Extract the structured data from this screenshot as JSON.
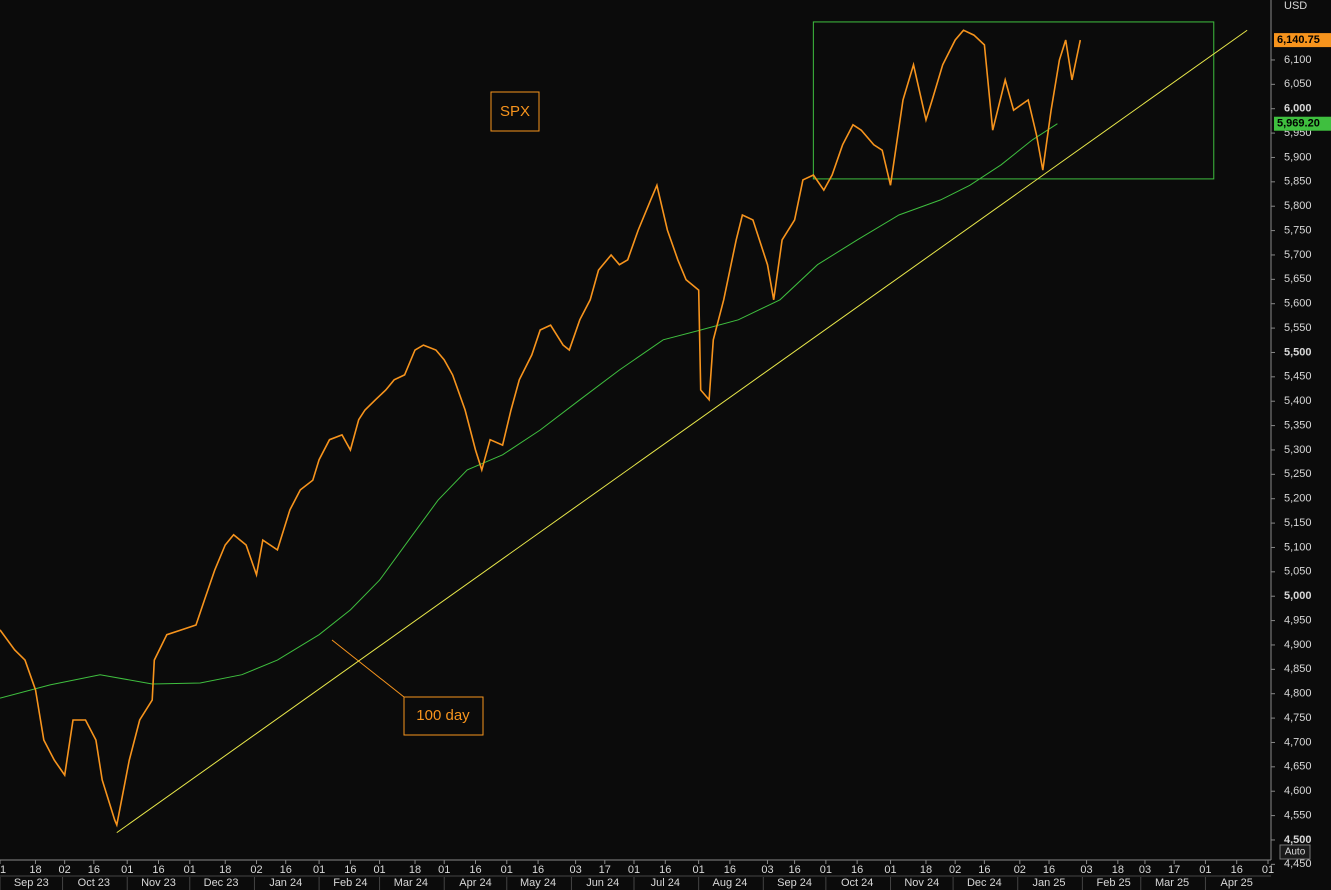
{
  "chart_data": {
    "type": "line",
    "currency_label": "USD",
    "annotations": [
      {
        "text": "SPX",
        "color": "#f7941d"
      },
      {
        "text": "100 day",
        "color": "#f7941d"
      }
    ],
    "auto_button": "Auto",
    "xlim": [
      "2023-09-01",
      "2025-05-01"
    ],
    "ylim": [
      4463,
      6223
    ],
    "series": [
      {
        "color": "#f7941d",
        "last_value_label": "6,140.75",
        "x": [
          "2023-09-01",
          "2023-09-08",
          "2023-09-13",
          "2023-09-18",
          "2023-09-22",
          "2023-09-27",
          "2023-10-02",
          "2023-10-06",
          "2023-10-12",
          "2023-10-17",
          "2023-10-20",
          "2023-10-26",
          "2023-10-27",
          "2023-11-02",
          "2023-11-07",
          "2023-11-13",
          "2023-11-14",
          "2023-11-20",
          "2023-11-27",
          "2023-12-04",
          "2023-12-08",
          "2023-12-13",
          "2023-12-18",
          "2023-12-22",
          "2023-12-28",
          "2024-01-02",
          "2024-01-05",
          "2024-01-12",
          "2024-01-18",
          "2024-01-23",
          "2024-01-29",
          "2024-02-01",
          "2024-02-06",
          "2024-02-12",
          "2024-02-16",
          "2024-02-20",
          "2024-02-23",
          "2024-02-28",
          "2024-03-04",
          "2024-03-08",
          "2024-03-13",
          "2024-03-18",
          "2024-03-22",
          "2024-03-28",
          "2024-04-01",
          "2024-04-05",
          "2024-04-11",
          "2024-04-16",
          "2024-04-19",
          "2024-04-23",
          "2024-04-29",
          "2024-05-03",
          "2024-05-07",
          "2024-05-13",
          "2024-05-17",
          "2024-05-22",
          "2024-05-28",
          "2024-05-31",
          "2024-06-05",
          "2024-06-10",
          "2024-06-14",
          "2024-06-20",
          "2024-06-24",
          "2024-06-28",
          "2024-07-03",
          "2024-07-09",
          "2024-07-12",
          "2024-07-17",
          "2024-07-22",
          "2024-07-26",
          "2024-08-01",
          "2024-08-02",
          "2024-08-06",
          "2024-08-08",
          "2024-08-13",
          "2024-08-19",
          "2024-08-22",
          "2024-08-27",
          "2024-09-03",
          "2024-09-06",
          "2024-09-10",
          "2024-09-16",
          "2024-09-20",
          "2024-09-25",
          "2024-09-30",
          "2024-10-04",
          "2024-10-09",
          "2024-10-14",
          "2024-10-18",
          "2024-10-24",
          "2024-10-28",
          "2024-11-01",
          "2024-11-07",
          "2024-11-12",
          "2024-11-18",
          "2024-11-21",
          "2024-11-26",
          "2024-12-02",
          "2024-12-06",
          "2024-12-11",
          "2024-12-16",
          "2024-12-20",
          "2024-12-26",
          "2024-12-30",
          "2025-01-06",
          "2025-01-10",
          "2025-01-13",
          "2025-01-17",
          "2025-01-21",
          "2025-01-24",
          "2025-01-27",
          "2025-01-31"
        ],
        "values": [
          4931,
          4890,
          4869,
          4808,
          4705,
          4664,
          4633,
          4746,
          4746,
          4705,
          4623,
          4541,
          4531,
          4664,
          4746,
          4787,
          4869,
          4921,
          4931,
          4941,
          4992,
          5054,
          5105,
          5126,
          5105,
          5044,
          5115,
          5095,
          5177,
          5218,
          5238,
          5280,
          5321,
          5331,
          5300,
          5362,
          5382,
          5403,
          5423,
          5444,
          5454,
          5505,
          5515,
          5505,
          5485,
          5454,
          5382,
          5300,
          5259,
          5321,
          5310,
          5382,
          5444,
          5495,
          5546,
          5556,
          5515,
          5505,
          5567,
          5608,
          5669,
          5700,
          5680,
          5690,
          5751,
          5813,
          5843,
          5751,
          5690,
          5649,
          5628,
          5423,
          5403,
          5526,
          5608,
          5731,
          5782,
          5772,
          5680,
          5608,
          5731,
          5772,
          5854,
          5864,
          5833,
          5864,
          5926,
          5967,
          5956,
          5926,
          5915,
          5843,
          6018,
          6090,
          5977,
          6018,
          6090,
          6141,
          6161,
          6151,
          6131,
          5956,
          6059,
          5997,
          6018,
          5946,
          5874,
          5997,
          6100,
          6141,
          6059,
          6140.75
        ]
      },
      {
        "color": "#3fbf3f",
        "last_value_label": "5,969.20",
        "x": [
          "2023-09-01",
          "2023-09-25",
          "2023-10-19",
          "2023-11-13",
          "2023-12-06",
          "2023-12-26",
          "2024-01-12",
          "2024-02-01",
          "2024-02-16",
          "2024-03-01",
          "2024-03-15",
          "2024-03-29",
          "2024-04-12",
          "2024-04-29",
          "2024-05-17",
          "2024-06-05",
          "2024-06-24",
          "2024-07-15",
          "2024-08-02",
          "2024-08-20",
          "2024-09-09",
          "2024-09-27",
          "2024-10-16",
          "2024-11-05",
          "2024-11-25",
          "2024-12-09",
          "2024-12-24",
          "2025-01-08",
          "2025-01-20"
        ],
        "values": [
          4791,
          4818,
          4839,
          4820,
          4822,
          4839,
          4869,
          4921,
          4972,
          5033,
          5115,
          5197,
          5259,
          5290,
          5341,
          5403,
          5464,
          5526,
          5546,
          5567,
          5608,
          5680,
          5731,
          5782,
          5813,
          5843,
          5885,
          5936,
          5969.2
        ]
      }
    ],
    "trendline": {
      "color": "#e8e84a",
      "x": [
        "2023-10-27",
        "2025-04-21"
      ],
      "values": [
        4515,
        6161
      ]
    },
    "range_box": {
      "color": "#3fbf3f",
      "x": [
        "2024-09-25",
        "2025-04-05"
      ],
      "values": [
        5856,
        6178
      ]
    },
    "yticks": [
      {
        "value": 4450,
        "label": "4,450"
      },
      {
        "value": 4500,
        "label": "4,500"
      },
      {
        "value": 4550,
        "label": "4,550"
      },
      {
        "value": 4600,
        "label": "4,600"
      },
      {
        "value": 4650,
        "label": "4,650"
      },
      {
        "value": 4700,
        "label": "4,700"
      },
      {
        "value": 4750,
        "label": "4,750"
      },
      {
        "value": 4800,
        "label": "4,800"
      },
      {
        "value": 4850,
        "label": "4,850"
      },
      {
        "value": 4900,
        "label": "4,900"
      },
      {
        "value": 4950,
        "label": "4,950"
      },
      {
        "value": 5000,
        "label": "5,000"
      },
      {
        "value": 5050,
        "label": "5,050"
      },
      {
        "value": 5100,
        "label": "5,100"
      },
      {
        "value": 5150,
        "label": "5,150"
      },
      {
        "value": 5200,
        "label": "5,200"
      },
      {
        "value": 5250,
        "label": "5,250"
      },
      {
        "value": 5300,
        "label": "5,300"
      },
      {
        "value": 5350,
        "label": "5,350"
      },
      {
        "value": 5400,
        "label": "5,400"
      },
      {
        "value": 5450,
        "label": "5,450"
      },
      {
        "value": 5500,
        "label": "5,500"
      },
      {
        "value": 5550,
        "label": "5,550"
      },
      {
        "value": 5600,
        "label": "5,600"
      },
      {
        "value": 5650,
        "label": "5,650"
      },
      {
        "value": 5700,
        "label": "5,700"
      },
      {
        "value": 5750,
        "label": "5,750"
      },
      {
        "value": 5800,
        "label": "5,800"
      },
      {
        "value": 5850,
        "label": "5,850"
      },
      {
        "value": 5900,
        "label": "5,900"
      },
      {
        "value": 5950,
        "label": "5,950"
      },
      {
        "value": 6000,
        "label": "6,000"
      },
      {
        "value": 6050,
        "label": "6,050"
      },
      {
        "value": 6100,
        "label": "6,100"
      }
    ],
    "xticks": [
      {
        "value": "2023-09-01",
        "label": "01"
      },
      {
        "value": "2023-09-18",
        "label": "18"
      },
      {
        "value": "2023-10-02",
        "label": "02"
      },
      {
        "value": "2023-10-16",
        "label": "16"
      },
      {
        "value": "2023-11-01",
        "label": "01"
      },
      {
        "value": "2023-11-16",
        "label": "16"
      },
      {
        "value": "2023-12-01",
        "label": "01"
      },
      {
        "value": "2023-12-18",
        "label": "18"
      },
      {
        "value": "2024-01-02",
        "label": "02"
      },
      {
        "value": "2024-01-16",
        "label": "16"
      },
      {
        "value": "2024-02-01",
        "label": "01"
      },
      {
        "value": "2024-02-16",
        "label": "16"
      },
      {
        "value": "2024-03-01",
        "label": "01"
      },
      {
        "value": "2024-03-18",
        "label": "18"
      },
      {
        "value": "2024-04-01",
        "label": "01"
      },
      {
        "value": "2024-04-16",
        "label": "16"
      },
      {
        "value": "2024-05-01",
        "label": "01"
      },
      {
        "value": "2024-05-16",
        "label": "16"
      },
      {
        "value": "2024-06-03",
        "label": "03"
      },
      {
        "value": "2024-06-17",
        "label": "17"
      },
      {
        "value": "2024-07-01",
        "label": "01"
      },
      {
        "value": "2024-07-16",
        "label": "16"
      },
      {
        "value": "2024-08-01",
        "label": "01"
      },
      {
        "value": "2024-08-16",
        "label": "16"
      },
      {
        "value": "2024-09-03",
        "label": "03"
      },
      {
        "value": "2024-09-16",
        "label": "16"
      },
      {
        "value": "2024-10-01",
        "label": "01"
      },
      {
        "value": "2024-10-16",
        "label": "16"
      },
      {
        "value": "2024-11-01",
        "label": "01"
      },
      {
        "value": "2024-11-18",
        "label": "18"
      },
      {
        "value": "2024-12-02",
        "label": "02"
      },
      {
        "value": "2024-12-16",
        "label": "16"
      },
      {
        "value": "2025-01-02",
        "label": "02"
      },
      {
        "value": "2025-01-16",
        "label": "16"
      },
      {
        "value": "2025-02-03",
        "label": "03"
      },
      {
        "value": "2025-02-18",
        "label": "18"
      },
      {
        "value": "2025-03-03",
        "label": "03"
      },
      {
        "value": "2025-03-17",
        "label": "17"
      },
      {
        "value": "2025-04-01",
        "label": "01"
      },
      {
        "value": "2025-04-16",
        "label": "16"
      },
      {
        "value": "2025-05-01",
        "label": "01"
      }
    ],
    "x_month_labels": [
      "Sep 23",
      "Oct 23",
      "Nov 23",
      "Dec 23",
      "Jan 24",
      "Feb 24",
      "Mar 24",
      "Apr 24",
      "May 24",
      "Jun 24",
      "Jul 24",
      "Aug 24",
      "Sep 24",
      "Oct 24",
      "Nov 24",
      "Dec 24",
      "Jan 25",
      "Feb 25",
      "Mar 25",
      "Apr 25"
    ]
  }
}
